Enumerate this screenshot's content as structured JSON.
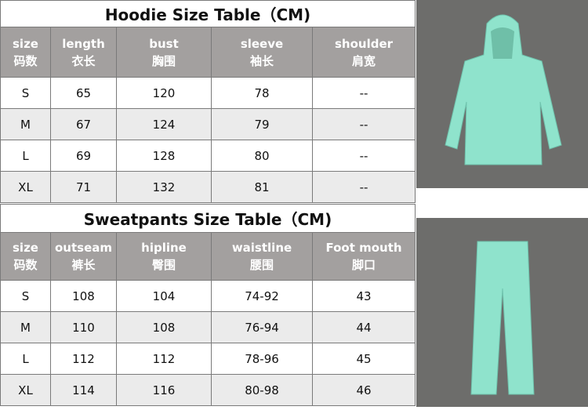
{
  "hoodie": {
    "title": "Hoodie Size Table（CM)",
    "headers": [
      {
        "en": "size",
        "zh": "码数"
      },
      {
        "en": "length",
        "zh": "衣长"
      },
      {
        "en": "bust",
        "zh": "胸围"
      },
      {
        "en": "sleeve",
        "zh": "袖长"
      },
      {
        "en": "shoulder",
        "zh": "肩宽"
      }
    ],
    "rows": [
      [
        "S",
        "65",
        "120",
        "78",
        "--"
      ],
      [
        "M",
        "67",
        "124",
        "79",
        "--"
      ],
      [
        "L",
        "69",
        "128",
        "80",
        "--"
      ],
      [
        "XL",
        "71",
        "132",
        "81",
        "--"
      ]
    ]
  },
  "sweatpants": {
    "title": "Sweatpants Size Table（CM)",
    "headers": [
      {
        "en": "size",
        "zh": "码数"
      },
      {
        "en": "outseam",
        "zh": "裤长"
      },
      {
        "en": "hipline",
        "zh": "臀围"
      },
      {
        "en": "waistline",
        "zh": "腰围"
      },
      {
        "en": "Foot mouth",
        "zh": "脚口"
      }
    ],
    "rows": [
      [
        "S",
        "108",
        "104",
        "74-92",
        "43"
      ],
      [
        "M",
        "110",
        "108",
        "76-94",
        "44"
      ],
      [
        "L",
        "112",
        "112",
        "78-96",
        "45"
      ],
      [
        "XL",
        "114",
        "116",
        "80-98",
        "46"
      ]
    ]
  },
  "colors": {
    "header_bg": "#a3a09f",
    "garment": "#8fe3cc",
    "photo_bg": "#6d6d6b"
  }
}
